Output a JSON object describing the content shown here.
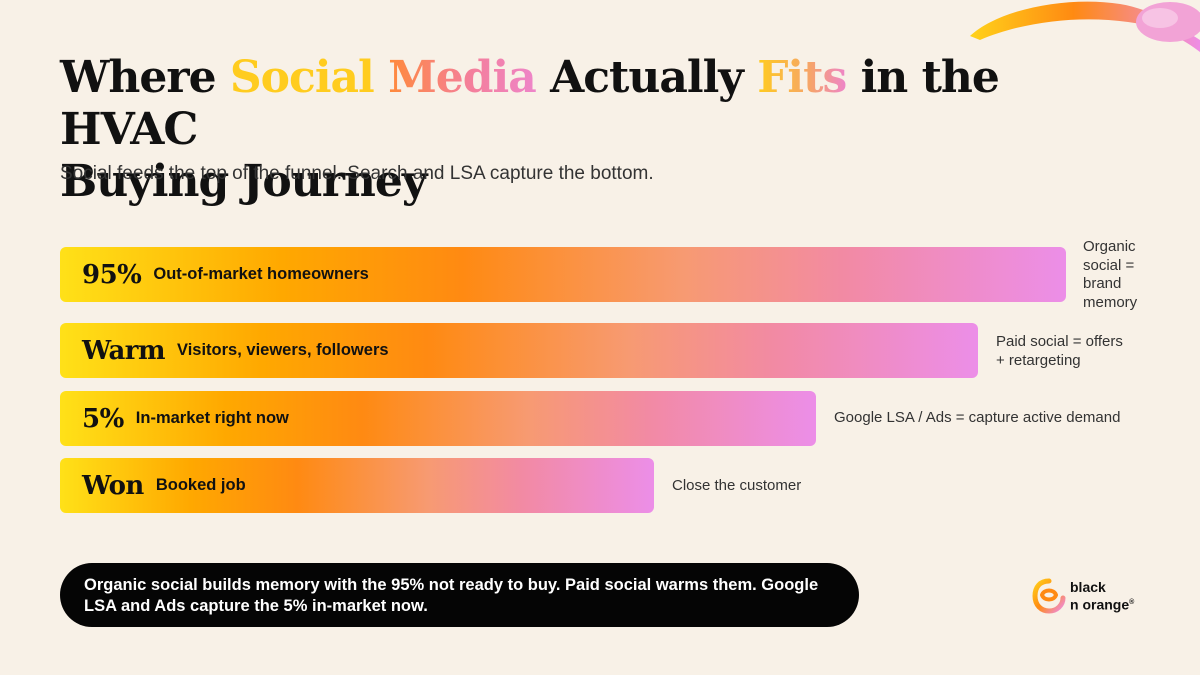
{
  "title": {
    "part1": "Where ",
    "part2": "Social",
    "part3": " ",
    "part4": "Media",
    "part5": " Actually ",
    "part6": "Fits",
    "part7": " in the HVAC",
    "part8": "Buying Journey"
  },
  "subtitle": "Social feeds the top of the funnel. Search and LSA capture the bottom.",
  "funnel": [
    {
      "big": "95%",
      "label": "Out-of-market homeowners",
      "note_lines": [
        "Organic",
        "social =",
        "brand",
        "memory"
      ],
      "width_fraction": 1.0
    },
    {
      "big": "Warm",
      "label": "Visitors, viewers, followers",
      "note_lines": [
        "Paid social = offers",
        "+ retargeting"
      ],
      "width_fraction": 0.9
    },
    {
      "big": "5%",
      "label": "In-market right now",
      "note_lines": [
        "Google LSA / Ads = capture active demand"
      ],
      "width_fraction": 0.75
    },
    {
      "big": "Won",
      "label": "Booked job",
      "note_lines": [
        "Close the customer"
      ],
      "width_fraction": 0.59
    }
  ],
  "callout": {
    "line1": "Organic social builds memory with the 95% not ready to buy. Paid social warms them. Google",
    "line2": "LSA and Ads capture the 5% in-market now."
  },
  "brand": {
    "line1": "black",
    "line2": "n orange",
    "mark": "®",
    "logo_icon": "black-n-orange-logo-icon"
  },
  "colors": {
    "background": "#f8f1e7",
    "accent_yellow": "#ffcc1f",
    "accent_orange": "#ff8a12",
    "accent_pink": "#ec8ee8",
    "callout_bg": "#050505"
  }
}
